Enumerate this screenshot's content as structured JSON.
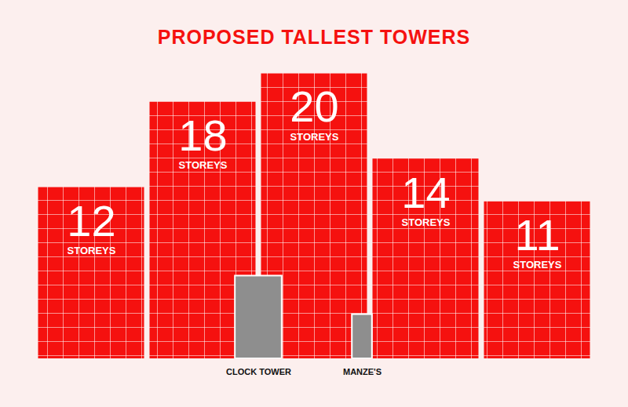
{
  "chart_data": {
    "type": "bar",
    "title": "PROPOSED TALLEST TOWERS",
    "categories": [
      null,
      null,
      null,
      null,
      null
    ],
    "values": [
      12,
      18,
      20,
      14,
      11
    ],
    "unit": "STOREYS",
    "color": "#f5110f",
    "ylim": [
      0,
      20
    ],
    "data_labels": true,
    "tick_labels": false,
    "annotations": [
      {
        "text": "CLOCK TOWER",
        "value": 5.8
      },
      {
        "text": "MANZE'S",
        "value": 3.1
      }
    ]
  }
}
